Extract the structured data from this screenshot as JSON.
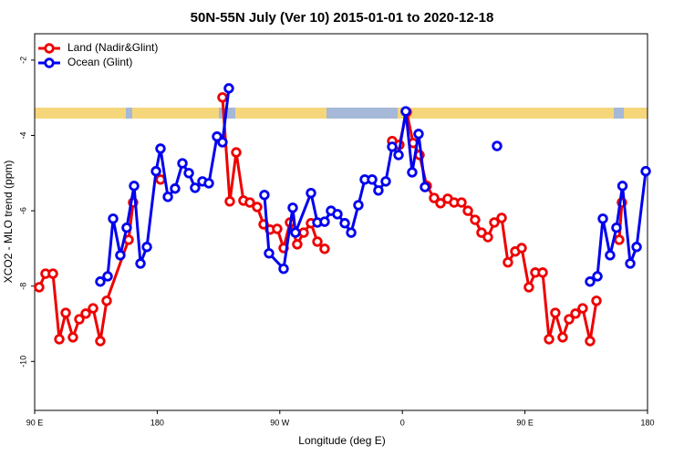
{
  "chart_data": {
    "type": "line",
    "title": "50N-55N July (Ver 10)   2015-01-01 to 2020-12-18",
    "x_label": "Longitude (deg E)",
    "y_label": "XCO2 - MLO trend (ppm)",
    "xlim": [
      90,
      540
    ],
    "xticks": [
      {
        "value": 90,
        "label": "90 E"
      },
      180,
      {
        "value": 270,
        "label": "90 W"
      },
      {
        "value": 360,
        "label": "0"
      },
      {
        "value": 450,
        "label": "90 E"
      },
      {
        "value": 540,
        "label": "180"
      }
    ],
    "ylim": [
      -11.3,
      -1.3
    ],
    "yticks": [
      -2,
      -4,
      -6,
      -8,
      -10
    ],
    "legend": "topleft",
    "series": [
      {
        "name": "Land (Nadir&Glint)",
        "color": "#ee0000",
        "x": [
          93.3,
          98.0,
          103.4,
          108.1,
          112.8,
          118.1,
          122.8,
          127.5,
          132.9,
          138.2,
          142.9,
          159.0,
          162.3,
          null,
          182.4,
          null,
          227.9,
          233.3,
          238.0,
          243.3,
          248.0,
          253.4,
          258.1,
          262.8,
          268.1,
          272.8,
          277.5,
          282.8,
          287.5,
          292.9,
          297.6,
          302.9,
          null,
          352.5,
          357.8,
          363.2,
          367.9,
          372.6,
          377.9,
          383.3,
          388.0,
          393.3,
          398.0,
          403.4,
          408.1,
          413.4,
          418.1,
          422.8,
          427.5,
          432.9,
          437.5,
          442.9,
          447.6,
          452.9,
          457.6,
          463.0,
          467.7,
          472.3,
          477.7,
          482.4,
          487.1,
          492.4,
          497.8,
          502.5,
          null,
          519.2,
          521.2
        ],
        "values": [
          -8.03,
          -7.67,
          -7.67,
          -9.41,
          -8.71,
          -9.36,
          -8.88,
          -8.73,
          -8.59,
          -9.46,
          -8.39,
          -6.77,
          -5.78,
          null,
          -5.17,
          null,
          -2.99,
          -5.75,
          -4.45,
          -5.73,
          -5.78,
          -5.9,
          -6.36,
          -6.5,
          -6.48,
          -6.99,
          -6.31,
          -6.89,
          -6.58,
          -6.33,
          -6.82,
          -7.01,
          null,
          -4.15,
          -4.25,
          -3.38,
          -4.2,
          -4.52,
          -5.34,
          -5.66,
          -5.8,
          -5.68,
          -5.78,
          -5.78,
          -6.0,
          -6.24,
          -6.58,
          -6.7,
          -6.31,
          -6.19,
          -7.37,
          -7.08,
          -6.99,
          -8.03,
          -7.64,
          -7.64,
          -9.41,
          -8.71,
          -9.36,
          -8.88,
          -8.73,
          -8.59,
          -9.46,
          -8.39,
          null,
          -6.77,
          -5.78
        ]
      },
      {
        "name": "Ocean (Glint)",
        "color": "#0000ee",
        "x": [
          138.2,
          143.6,
          147.6,
          152.9,
          157.6,
          163.0,
          167.7,
          172.4,
          179.1,
          182.4,
          187.8,
          193.1,
          198.5,
          203.2,
          207.8,
          213.2,
          217.9,
          223.9,
          227.9,
          232.6,
          null,
          258.7,
          262.1,
          272.8,
          279.5,
          281.5,
          292.9,
          297.6,
          302.9,
          307.6,
          312.3,
          317.7,
          322.4,
          327.7,
          332.4,
          337.8,
          342.4,
          347.8,
          352.5,
          357.2,
          362.5,
          367.2,
          371.9,
          376.6,
          null,
          429.5,
          null,
          497.8,
          503.2,
          507.2,
          512.5,
          517.2,
          521.6,
          527.3,
          532.0,
          538.7
        ],
        "values": [
          -7.88,
          -7.74,
          -6.21,
          -7.18,
          -6.45,
          -5.34,
          -7.4,
          -6.96,
          -4.95,
          -4.35,
          -5.63,
          -5.41,
          -4.74,
          -5.0,
          -5.39,
          -5.22,
          -5.27,
          -4.03,
          -4.18,
          -2.75,
          null,
          -5.58,
          -7.13,
          -7.54,
          -5.92,
          -6.58,
          -5.53,
          -6.31,
          -6.29,
          -6.0,
          -6.09,
          -6.33,
          -6.58,
          -5.85,
          -5.17,
          -5.17,
          -5.46,
          -5.22,
          -4.3,
          -4.52,
          -3.36,
          -4.98,
          -3.96,
          -5.37,
          null,
          -4.28,
          null,
          -7.88,
          -7.74,
          -6.21,
          -7.18,
          -6.45,
          -5.34,
          -7.4,
          -6.96,
          -4.95
        ]
      }
    ]
  }
}
